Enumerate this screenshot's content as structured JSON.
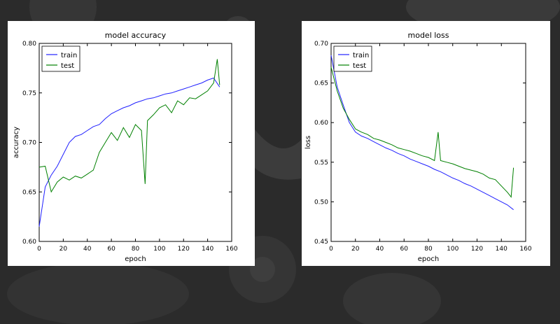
{
  "background": {
    "color": "#2b2b2b"
  },
  "chart_data": [
    {
      "type": "line",
      "title": "model accuracy",
      "xlabel": "epoch",
      "ylabel": "accuracy",
      "xlim": [
        0,
        160
      ],
      "ylim": [
        0.6,
        0.8
      ],
      "xticks": [
        "0",
        "20",
        "40",
        "60",
        "80",
        "100",
        "120",
        "140",
        "160"
      ],
      "yticks": [
        "0.60",
        "0.65",
        "0.70",
        "0.75",
        "0.80"
      ],
      "grid": false,
      "legend_position": "top-left",
      "series": [
        {
          "name": "train",
          "color": "#2020ff",
          "x": [
            0,
            5,
            10,
            15,
            20,
            25,
            30,
            35,
            40,
            45,
            50,
            55,
            60,
            65,
            70,
            75,
            80,
            85,
            90,
            95,
            100,
            105,
            110,
            115,
            120,
            125,
            130,
            135,
            140,
            145,
            150
          ],
          "y": [
            0.615,
            0.655,
            0.667,
            0.676,
            0.688,
            0.7,
            0.706,
            0.708,
            0.712,
            0.716,
            0.718,
            0.724,
            0.729,
            0.732,
            0.735,
            0.737,
            0.74,
            0.742,
            0.744,
            0.745,
            0.747,
            0.749,
            0.75,
            0.752,
            0.754,
            0.756,
            0.758,
            0.76,
            0.763,
            0.765,
            0.756
          ]
        },
        {
          "name": "test",
          "color": "#008000",
          "x": [
            0,
            5,
            10,
            15,
            20,
            25,
            30,
            35,
            40,
            45,
            50,
            55,
            60,
            65,
            70,
            75,
            80,
            85,
            88,
            90,
            95,
            100,
            105,
            110,
            115,
            120,
            125,
            130,
            135,
            140,
            145,
            148,
            150
          ],
          "y": [
            0.675,
            0.676,
            0.65,
            0.66,
            0.665,
            0.662,
            0.666,
            0.664,
            0.668,
            0.672,
            0.69,
            0.7,
            0.71,
            0.702,
            0.715,
            0.705,
            0.718,
            0.712,
            0.658,
            0.722,
            0.728,
            0.735,
            0.738,
            0.73,
            0.742,
            0.738,
            0.745,
            0.744,
            0.748,
            0.752,
            0.76,
            0.784,
            0.758
          ]
        }
      ]
    },
    {
      "type": "line",
      "title": "model loss",
      "xlabel": "epoch",
      "ylabel": "loss",
      "xlim": [
        0,
        160
      ],
      "ylim": [
        0.45,
        0.7
      ],
      "xticks": [
        "0",
        "20",
        "40",
        "60",
        "80",
        "100",
        "120",
        "140",
        "160"
      ],
      "yticks": [
        "0.45",
        "0.50",
        "0.55",
        "0.60",
        "0.65",
        "0.70"
      ],
      "grid": false,
      "legend_position": "top-left",
      "series": [
        {
          "name": "train",
          "color": "#2020ff",
          "x": [
            0,
            5,
            10,
            15,
            20,
            25,
            30,
            35,
            40,
            45,
            50,
            55,
            60,
            65,
            70,
            75,
            80,
            85,
            90,
            95,
            100,
            105,
            110,
            115,
            120,
            125,
            130,
            135,
            140,
            145,
            150
          ],
          "y": [
            0.685,
            0.645,
            0.622,
            0.6,
            0.588,
            0.583,
            0.58,
            0.576,
            0.572,
            0.568,
            0.565,
            0.561,
            0.558,
            0.554,
            0.551,
            0.548,
            0.545,
            0.541,
            0.538,
            0.534,
            0.53,
            0.527,
            0.523,
            0.52,
            0.516,
            0.512,
            0.508,
            0.504,
            0.5,
            0.496,
            0.49
          ]
        },
        {
          "name": "test",
          "color": "#008000",
          "x": [
            0,
            5,
            10,
            15,
            20,
            25,
            30,
            35,
            40,
            45,
            50,
            55,
            60,
            65,
            70,
            75,
            80,
            85,
            88,
            90,
            95,
            100,
            105,
            110,
            115,
            120,
            125,
            130,
            135,
            140,
            145,
            148,
            150
          ],
          "y": [
            0.67,
            0.64,
            0.618,
            0.604,
            0.592,
            0.588,
            0.585,
            0.58,
            0.578,
            0.575,
            0.572,
            0.568,
            0.566,
            0.564,
            0.561,
            0.558,
            0.556,
            0.552,
            0.588,
            0.552,
            0.55,
            0.548,
            0.545,
            0.542,
            0.54,
            0.538,
            0.535,
            0.53,
            0.528,
            0.52,
            0.512,
            0.506,
            0.543
          ]
        }
      ]
    }
  ]
}
